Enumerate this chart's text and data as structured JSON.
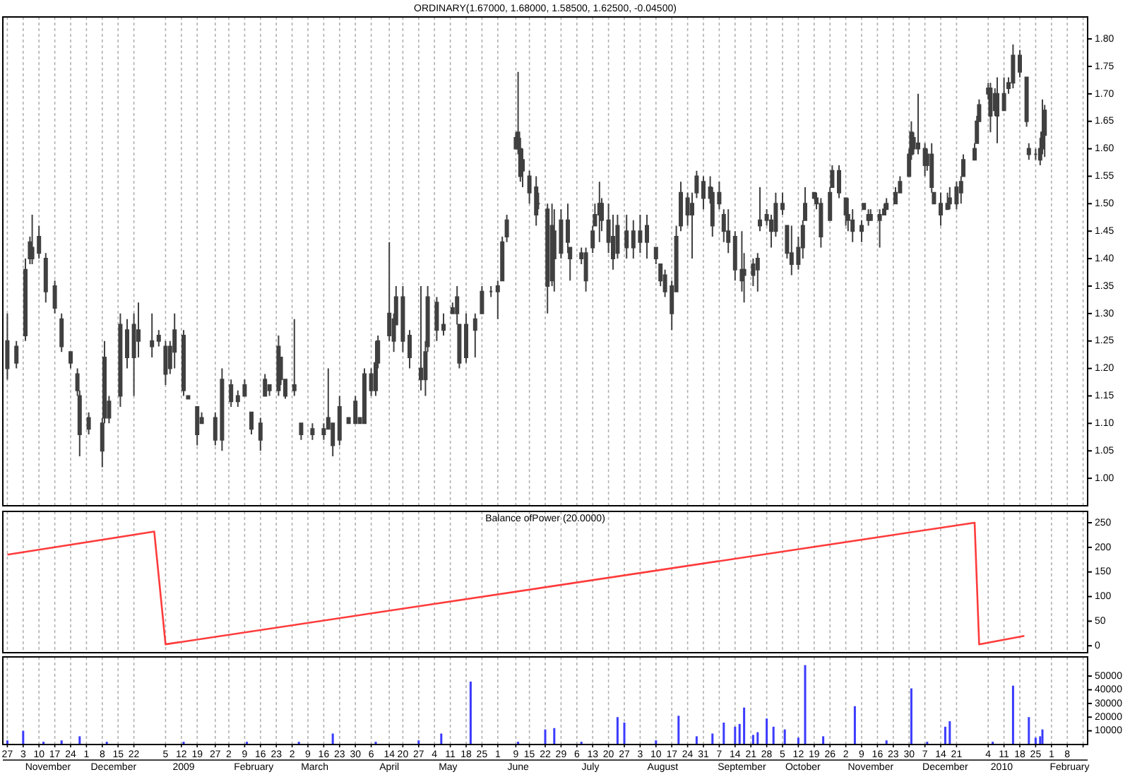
{
  "chart_data": [
    {
      "type": "candlestick",
      "title": "ORDINARY(1.67000, 1.68000, 1.58500, 1.62500, -0.04500)",
      "color": "#404040",
      "grid": "x",
      "tick_labels": "y",
      "xlim": [
        "2008-10-25",
        "2010-02-17"
      ],
      "ylim": [
        0.95,
        1.84
      ],
      "yticks": [
        {
          "value": 1,
          "label": "1.00"
        },
        1.05,
        {
          "value": 1.1,
          "label": "1.10"
        },
        1.15,
        {
          "value": 1.2,
          "label": "1.20"
        },
        1.25,
        {
          "value": 1.3,
          "label": "1.30"
        },
        1.35,
        {
          "value": 1.4,
          "label": "1.40"
        },
        1.45,
        {
          "value": 1.5,
          "label": "1.50"
        },
        1.55,
        {
          "value": 1.6,
          "label": "1.60"
        },
        1.65,
        {
          "value": 1.7,
          "label": "1.70"
        },
        1.75,
        {
          "value": 1.8,
          "label": "1.80"
        }
      ],
      "xticks": [
        "2008-10-27",
        "2008-11-03",
        "2008-11-10",
        "2008-11-17",
        "2008-11-24",
        "2008-12-01",
        "2008-12-08",
        "2008-12-15",
        "2008-12-22",
        "2009-01-05",
        "2009-01-12",
        "2009-01-19",
        "2009-01-27",
        "2009-02-02",
        "2009-02-09",
        "2009-02-16",
        "2009-02-23",
        "2009-03-02",
        "2009-03-09",
        "2009-03-16",
        "2009-03-23",
        "2009-03-30",
        "2009-04-06",
        "2009-04-14",
        "2009-04-20",
        "2009-04-27",
        "2009-05-04",
        "2009-05-11",
        "2009-05-18",
        "2009-05-25",
        "2009-06-01",
        "2009-06-09",
        "2009-06-15",
        "2009-06-22",
        "2009-06-29",
        "2009-07-06",
        "2009-07-13",
        "2009-07-20",
        "2009-07-27",
        "2009-08-03",
        "2009-08-10",
        "2009-08-17",
        "2009-08-24",
        "2009-08-31",
        "2009-09-07",
        "2009-09-14",
        "2009-09-21",
        "2009-09-28",
        "2009-10-05",
        "2009-10-12",
        "2009-10-19",
        "2009-10-26",
        "2009-11-02",
        "2009-11-09",
        "2009-11-16",
        "2009-11-23",
        "2009-11-30",
        "2009-12-07",
        "2009-12-14",
        "2009-12-21",
        "2010-01-04",
        "2010-01-11",
        "2010-01-18",
        "2010-01-25",
        "2010-02-01",
        "2010-02-08",
        "2010-02-15"
      ],
      "x": [
        "2008-10-27",
        "2008-10-31",
        "2008-11-04",
        "2008-11-06",
        "2008-11-07",
        "2008-11-10",
        "2008-11-13",
        "2008-11-17",
        "2008-11-20",
        "2008-11-24",
        "2008-11-27",
        "2008-11-28",
        "2008-12-02",
        "2008-12-08",
        "2008-12-09",
        "2008-12-11",
        "2008-12-16",
        "2008-12-19",
        "2008-12-22",
        "2008-12-24",
        "2008-12-30",
        "2009-01-02",
        "2009-01-05",
        "2009-01-07",
        "2009-01-09",
        "2009-01-13",
        "2009-01-15",
        "2009-01-19",
        "2009-01-21",
        "2009-01-27",
        "2009-01-30",
        "2009-02-03",
        "2009-02-06",
        "2009-02-09",
        "2009-02-12",
        "2009-02-16",
        "2009-02-18",
        "2009-02-20",
        "2009-02-24",
        "2009-02-25",
        "2009-02-27",
        "2009-03-03",
        "2009-03-06",
        "2009-03-11",
        "2009-03-16",
        "2009-03-18",
        "2009-03-20",
        "2009-03-23",
        "2009-03-27",
        "2009-03-30",
        "2009-04-01",
        "2009-04-03",
        "2009-04-06",
        "2009-04-08",
        "2009-04-09",
        "2009-04-14",
        "2009-04-16",
        "2009-04-17",
        "2009-04-20",
        "2009-04-23",
        "2009-04-28",
        "2009-04-30",
        "2009-05-01",
        "2009-05-05",
        "2009-05-08",
        "2009-05-12",
        "2009-05-14",
        "2009-05-15",
        "2009-05-18",
        "2009-05-22",
        "2009-05-25",
        "2009-05-29",
        "2009-06-01",
        "2009-06-03",
        "2009-06-05",
        "2009-06-09",
        "2009-06-10",
        "2009-06-11",
        "2009-06-12",
        "2009-06-15",
        "2009-06-18",
        "2009-06-19",
        "2009-06-23",
        "2009-06-25",
        "2009-06-26",
        "2009-06-29",
        "2009-07-02",
        "2009-07-03",
        "2009-07-08",
        "2009-07-10",
        "2009-07-13",
        "2009-07-14",
        "2009-07-16",
        "2009-07-17",
        "2009-07-20",
        "2009-07-22",
        "2009-07-24",
        "2009-07-28",
        "2009-07-31",
        "2009-08-03",
        "2009-08-06",
        "2009-08-10",
        "2009-08-12",
        "2009-08-14",
        "2009-08-17",
        "2009-08-19",
        "2009-08-21",
        "2009-08-24",
        "2009-08-26",
        "2009-08-28",
        "2009-08-31",
        "2009-09-03",
        "2009-09-04",
        "2009-09-07",
        "2009-09-09",
        "2009-09-11",
        "2009-09-14",
        "2009-09-17",
        "2009-09-18",
        "2009-09-22",
        "2009-09-24",
        "2009-09-25",
        "2009-09-28",
        "2009-09-30",
        "2009-10-02",
        "2009-10-05",
        "2009-10-07",
        "2009-10-09",
        "2009-10-12",
        "2009-10-14",
        "2009-10-15",
        "2009-10-19",
        "2009-10-20",
        "2009-10-22",
        "2009-10-26",
        "2009-10-27",
        "2009-10-30",
        "2009-11-02",
        "2009-11-03",
        "2009-11-05",
        "2009-11-09",
        "2009-11-10",
        "2009-11-12",
        "2009-11-13",
        "2009-11-17",
        "2009-11-19",
        "2009-11-20",
        "2009-11-24",
        "2009-11-26",
        "2009-11-30",
        "2009-12-01",
        "2009-12-02",
        "2009-12-04",
        "2009-12-07",
        "2009-12-08",
        "2009-12-10",
        "2009-12-11",
        "2009-12-14",
        "2009-12-17",
        "2009-12-18",
        "2009-12-21",
        "2009-12-23",
        "2009-12-24",
        "2009-12-29",
        "2009-12-30",
        "2009-12-31",
        "2010-01-04",
        "2010-01-05",
        "2010-01-07",
        "2010-01-08",
        "2010-01-11",
        "2010-01-13",
        "2010-01-15",
        "2010-01-18",
        "2010-01-21",
        "2010-01-22",
        "2010-01-25",
        "2010-01-27",
        "2010-01-28",
        "2010-01-29"
      ],
      "ohlc": [
        [
          1.2,
          1.3,
          1.18,
          1.25
        ],
        [
          1.21,
          1.25,
          1.2,
          1.24
        ],
        [
          1.26,
          1.4,
          1.25,
          1.38
        ],
        [
          1.4,
          1.44,
          1.39,
          1.43
        ],
        [
          1.42,
          1.48,
          1.39,
          1.4
        ],
        [
          1.41,
          1.46,
          1.4,
          1.44
        ],
        [
          1.4,
          1.41,
          1.32,
          1.34
        ],
        [
          1.35,
          1.36,
          1.3,
          1.31
        ],
        [
          1.29,
          1.3,
          1.23,
          1.24
        ],
        [
          1.23,
          1.23,
          1.2,
          1.21
        ],
        [
          1.19,
          1.2,
          1.15,
          1.16
        ],
        [
          1.15,
          1.16,
          1.04,
          1.08
        ],
        [
          1.09,
          1.12,
          1.08,
          1.11
        ],
        [
          1.1,
          1.11,
          1.02,
          1.05
        ],
        [
          1.11,
          1.25,
          1.1,
          1.22
        ],
        [
          1.14,
          1.15,
          1.1,
          1.11
        ],
        [
          1.15,
          1.3,
          1.13,
          1.28
        ],
        [
          1.27,
          1.29,
          1.2,
          1.22
        ],
        [
          1.22,
          1.3,
          1.15,
          1.28
        ],
        [
          1.27,
          1.32,
          1.22,
          1.25
        ],
        [
          1.25,
          1.3,
          1.22,
          1.24
        ],
        [
          1.26,
          1.27,
          1.24,
          1.25
        ],
        [
          1.24,
          1.25,
          1.17,
          1.19
        ],
        [
          1.2,
          1.25,
          1.19,
          1.24
        ],
        [
          1.23,
          1.3,
          1.2,
          1.27
        ],
        [
          1.26,
          1.27,
          1.15,
          1.16
        ],
        [
          1.15,
          1.15,
          1.145,
          1.145
        ],
        [
          1.13,
          1.13,
          1.06,
          1.08
        ],
        [
          1.1,
          1.12,
          1.1,
          1.11
        ],
        [
          1.11,
          1.12,
          1.06,
          1.07
        ],
        [
          1.07,
          1.2,
          1.05,
          1.18
        ],
        [
          1.17,
          1.18,
          1.13,
          1.14
        ],
        [
          1.14,
          1.16,
          1.13,
          1.15
        ],
        [
          1.15,
          1.18,
          1.15,
          1.17
        ],
        [
          1.12,
          1.12,
          1.08,
          1.09
        ],
        [
          1.1,
          1.11,
          1.05,
          1.07
        ],
        [
          1.15,
          1.19,
          1.15,
          1.18
        ],
        [
          1.17,
          1.17,
          1.15,
          1.16
        ],
        [
          1.16,
          1.26,
          1.15,
          1.24
        ],
        [
          1.22,
          1.22,
          1.17,
          1.18
        ],
        [
          1.18,
          1.18,
          1.145,
          1.15
        ],
        [
          1.16,
          1.29,
          1.15,
          1.17
        ],
        [
          1.1,
          1.1,
          1.07,
          1.08
        ],
        [
          1.08,
          1.1,
          1.07,
          1.09
        ],
        [
          1.09,
          1.1,
          1.07,
          1.08
        ],
        [
          1.09,
          1.2,
          1.09,
          1.11
        ],
        [
          1.1,
          1.1,
          1.04,
          1.06
        ],
        [
          1.07,
          1.15,
          1.06,
          1.13
        ],
        [
          1.11,
          1.11,
          1.1,
          1.1
        ],
        [
          1.1,
          1.15,
          1.1,
          1.14
        ],
        [
          1.11,
          1.11,
          1.1,
          1.1
        ],
        [
          1.1,
          1.2,
          1.1,
          1.19
        ],
        [
          1.19,
          1.2,
          1.15,
          1.16
        ],
        [
          1.16,
          1.25,
          1.15,
          1.21
        ],
        [
          1.21,
          1.26,
          1.2,
          1.25
        ],
        [
          1.26,
          1.43,
          1.25,
          1.3
        ],
        [
          1.29,
          1.3,
          1.23,
          1.25
        ],
        [
          1.28,
          1.35,
          1.28,
          1.33
        ],
        [
          1.33,
          1.35,
          1.23,
          1.25
        ],
        [
          1.26,
          1.27,
          1.2,
          1.22
        ],
        [
          1.2,
          1.35,
          1.16,
          1.18
        ],
        [
          1.18,
          1.25,
          1.15,
          1.23
        ],
        [
          1.24,
          1.35,
          1.23,
          1.33
        ],
        [
          1.32,
          1.33,
          1.25,
          1.27
        ],
        [
          1.27,
          1.3,
          1.26,
          1.28
        ],
        [
          1.3,
          1.32,
          1.3,
          1.31
        ],
        [
          1.3,
          1.35,
          1.28,
          1.33
        ],
        [
          1.28,
          1.28,
          1.2,
          1.21
        ],
        [
          1.22,
          1.3,
          1.21,
          1.28
        ],
        [
          1.27,
          1.3,
          1.22,
          1.29
        ],
        [
          1.3,
          1.35,
          1.3,
          1.34
        ],
        [
          1.34,
          1.35,
          1.33,
          1.34
        ],
        [
          1.34,
          1.36,
          1.29,
          1.35
        ],
        [
          1.36,
          1.44,
          1.36,
          1.43
        ],
        [
          1.44,
          1.48,
          1.43,
          1.47
        ],
        [
          1.6,
          1.63,
          1.6,
          1.62
        ],
        [
          1.63,
          1.74,
          1.59,
          1.6
        ],
        [
          1.6,
          1.62,
          1.54,
          1.55
        ],
        [
          1.56,
          1.6,
          1.53,
          1.58
        ],
        [
          1.55,
          1.56,
          1.5,
          1.52
        ],
        [
          1.53,
          1.55,
          1.46,
          1.48
        ],
        [
          1.5,
          1.52,
          1.49,
          1.5
        ],
        [
          1.49,
          1.5,
          1.3,
          1.35
        ],
        [
          1.36,
          1.5,
          1.35,
          1.46
        ],
        [
          1.45,
          1.49,
          1.34,
          1.4
        ],
        [
          1.41,
          1.49,
          1.4,
          1.47
        ],
        [
          1.47,
          1.5,
          1.41,
          1.43
        ],
        [
          1.42,
          1.42,
          1.36,
          1.4
        ],
        [
          1.4,
          1.42,
          1.39,
          1.41
        ],
        [
          1.41,
          1.42,
          1.34,
          1.36
        ],
        [
          1.42,
          1.46,
          1.41,
          1.45
        ],
        [
          1.46,
          1.5,
          1.46,
          1.48
        ],
        [
          1.48,
          1.54,
          1.43,
          1.5
        ],
        [
          1.5,
          1.51,
          1.45,
          1.47
        ],
        [
          1.47,
          1.5,
          1.41,
          1.43
        ],
        [
          1.44,
          1.48,
          1.38,
          1.4
        ],
        [
          1.41,
          1.48,
          1.4,
          1.46
        ],
        [
          1.45,
          1.48,
          1.4,
          1.42
        ],
        [
          1.42,
          1.47,
          1.4,
          1.45
        ],
        [
          1.45,
          1.48,
          1.41,
          1.43
        ],
        [
          1.43,
          1.48,
          1.4,
          1.46
        ],
        [
          1.42,
          1.42,
          1.39,
          1.4
        ],
        [
          1.39,
          1.39,
          1.35,
          1.36
        ],
        [
          1.37,
          1.38,
          1.33,
          1.34
        ],
        [
          1.35,
          1.36,
          1.27,
          1.3
        ],
        [
          1.34,
          1.46,
          1.34,
          1.44
        ],
        [
          1.46,
          1.54,
          1.45,
          1.52
        ],
        [
          1.51,
          1.52,
          1.46,
          1.48
        ],
        [
          1.48,
          1.52,
          1.4,
          1.5
        ],
        [
          1.52,
          1.56,
          1.51,
          1.55
        ],
        [
          1.54,
          1.55,
          1.49,
          1.51
        ],
        [
          1.51,
          1.55,
          1.5,
          1.53
        ],
        [
          1.52,
          1.53,
          1.44,
          1.46
        ],
        [
          1.5,
          1.54,
          1.49,
          1.52
        ],
        [
          1.48,
          1.49,
          1.43,
          1.45
        ],
        [
          1.45,
          1.49,
          1.41,
          1.43
        ],
        [
          1.44,
          1.45,
          1.36,
          1.38
        ],
        [
          1.38,
          1.45,
          1.34,
          1.36
        ],
        [
          1.37,
          1.41,
          1.32,
          1.38
        ],
        [
          1.37,
          1.4,
          1.35,
          1.39
        ],
        [
          1.38,
          1.41,
          1.34,
          1.4
        ],
        [
          1.46,
          1.53,
          1.45,
          1.47
        ],
        [
          1.47,
          1.49,
          1.46,
          1.48
        ],
        [
          1.47,
          1.48,
          1.42,
          1.45
        ],
        [
          1.45,
          1.52,
          1.44,
          1.5
        ],
        [
          1.5,
          1.52,
          1.48,
          1.49
        ],
        [
          1.46,
          1.46,
          1.4,
          1.41
        ],
        [
          1.41,
          1.46,
          1.37,
          1.39
        ],
        [
          1.39,
          1.44,
          1.38,
          1.42
        ],
        [
          1.42,
          1.47,
          1.4,
          1.46
        ],
        [
          1.47,
          1.53,
          1.47,
          1.5
        ],
        [
          1.51,
          1.52,
          1.51,
          1.52
        ],
        [
          1.51,
          1.52,
          1.49,
          1.5
        ],
        [
          1.5,
          1.51,
          1.42,
          1.44
        ],
        [
          1.47,
          1.53,
          1.47,
          1.52
        ],
        [
          1.53,
          1.57,
          1.53,
          1.56
        ],
        [
          1.56,
          1.57,
          1.51,
          1.52
        ],
        [
          1.51,
          1.51,
          1.46,
          1.48
        ],
        [
          1.48,
          1.51,
          1.45,
          1.47
        ],
        [
          1.47,
          1.49,
          1.43,
          1.45
        ],
        [
          1.45,
          1.47,
          1.43,
          1.46
        ],
        [
          1.49,
          1.5,
          1.49,
          1.5
        ],
        [
          1.48,
          1.49,
          1.46,
          1.47
        ],
        [
          1.47,
          1.49,
          1.47,
          1.48
        ],
        [
          1.48,
          1.49,
          1.42,
          1.47
        ],
        [
          1.48,
          1.5,
          1.48,
          1.49
        ],
        [
          1.49,
          1.51,
          1.49,
          1.5
        ],
        [
          1.5,
          1.53,
          1.5,
          1.52
        ],
        [
          1.52,
          1.55,
          1.52,
          1.54
        ],
        [
          1.55,
          1.6,
          1.55,
          1.59
        ],
        [
          1.59,
          1.65,
          1.58,
          1.63
        ],
        [
          1.62,
          1.63,
          1.59,
          1.6
        ],
        [
          1.6,
          1.7,
          1.59,
          1.61
        ],
        [
          1.6,
          1.61,
          1.55,
          1.57
        ],
        [
          1.57,
          1.6,
          1.56,
          1.59
        ],
        [
          1.59,
          1.61,
          1.52,
          1.53
        ],
        [
          1.52,
          1.52,
          1.5,
          1.5
        ],
        [
          1.5,
          1.52,
          1.46,
          1.48
        ],
        [
          1.49,
          1.52,
          1.49,
          1.5
        ],
        [
          1.5,
          1.53,
          1.49,
          1.51
        ],
        [
          1.5,
          1.54,
          1.49,
          1.53
        ],
        [
          1.52,
          1.55,
          1.5,
          1.54
        ],
        [
          1.55,
          1.59,
          1.55,
          1.58
        ],
        [
          1.58,
          1.61,
          1.58,
          1.6
        ],
        [
          1.61,
          1.66,
          1.61,
          1.65
        ],
        [
          1.65,
          1.69,
          1.65,
          1.68
        ],
        [
          1.7,
          1.72,
          1.69,
          1.71
        ],
        [
          1.71,
          1.72,
          1.63,
          1.66
        ],
        [
          1.67,
          1.71,
          1.66,
          1.7
        ],
        [
          1.7,
          1.73,
          1.61,
          1.66
        ],
        [
          1.67,
          1.73,
          1.67,
          1.7
        ],
        [
          1.71,
          1.73,
          1.7,
          1.72
        ],
        [
          1.72,
          1.79,
          1.71,
          1.77
        ],
        [
          1.77,
          1.78,
          1.73,
          1.74
        ],
        [
          1.73,
          1.73,
          1.64,
          1.65
        ],
        [
          1.6,
          1.61,
          1.58,
          1.59
        ],
        [
          1.59,
          1.6,
          1.58,
          1.59
        ],
        [
          1.58,
          1.62,
          1.57,
          1.6
        ],
        [
          1.6,
          1.69,
          1.59,
          1.63
        ],
        [
          1.67,
          1.68,
          1.585,
          1.625
        ]
      ]
    },
    {
      "type": "line",
      "title": "Balance ofPower (20.0000)",
      "color": "#ff3b3b",
      "grid": "x",
      "tick_labels": "y",
      "xlim": [
        "2008-10-25",
        "2010-02-17"
      ],
      "ylim": [
        -14,
        273
      ],
      "yticks": [
        0,
        50,
        100,
        150,
        200,
        250
      ],
      "xticks": [
        "2008-10-27",
        "2008-11-03",
        "2008-11-10",
        "2008-11-17",
        "2008-11-24",
        "2008-12-01",
        "2008-12-08",
        "2008-12-15",
        "2008-12-22",
        "2009-01-05",
        "2009-01-12",
        "2009-01-19",
        "2009-01-27",
        "2009-02-02",
        "2009-02-09",
        "2009-02-16",
        "2009-02-23",
        "2009-03-02",
        "2009-03-09",
        "2009-03-16",
        "2009-03-23",
        "2009-03-30",
        "2009-04-06",
        "2009-04-14",
        "2009-04-20",
        "2009-04-27",
        "2009-05-04",
        "2009-05-11",
        "2009-05-18",
        "2009-05-25",
        "2009-06-01",
        "2009-06-09",
        "2009-06-15",
        "2009-06-22",
        "2009-06-29",
        "2009-07-06",
        "2009-07-13",
        "2009-07-20",
        "2009-07-27",
        "2009-08-03",
        "2009-08-10",
        "2009-08-17",
        "2009-08-24",
        "2009-08-31",
        "2009-09-07",
        "2009-09-14",
        "2009-09-21",
        "2009-09-28",
        "2009-10-05",
        "2009-10-12",
        "2009-10-19",
        "2009-10-26",
        "2009-11-02",
        "2009-11-09",
        "2009-11-16",
        "2009-11-23",
        "2009-11-30",
        "2009-12-07",
        "2009-12-14",
        "2009-12-21",
        "2010-01-04",
        "2010-01-11",
        "2010-01-18",
        "2010-01-25",
        "2010-02-01",
        "2010-02-08",
        "2010-02-15"
      ],
      "x": [
        "2008-10-27",
        "2008-12-31",
        "2009-01-05",
        "2009-12-29",
        "2009-12-31",
        "2010-01-20"
      ],
      "values": [
        185,
        232,
        3,
        250,
        3,
        20
      ]
    },
    {
      "type": "bar",
      "color": "#3b3bff",
      "grid": "x",
      "xlim": [
        "2008-10-25",
        "2010-02-17"
      ],
      "ylim": [
        0,
        64000
      ],
      "yticks": [
        10000,
        20000,
        30000,
        40000,
        50000
      ],
      "xticks": [
        {
          "value": "2008-10-27",
          "label": "27"
        },
        {
          "value": "2008-11-03",
          "label": "3"
        },
        {
          "value": "2008-11-10",
          "label": "10"
        },
        {
          "value": "2008-11-17",
          "label": "17"
        },
        {
          "value": "2008-11-24",
          "label": "24"
        },
        {
          "value": "2008-12-01",
          "label": "1"
        },
        {
          "value": "2008-12-08",
          "label": "8"
        },
        {
          "value": "2008-12-15",
          "label": "15"
        },
        {
          "value": "2008-12-22",
          "label": "22"
        },
        {
          "value": "2009-01-05",
          "label": "5"
        },
        {
          "value": "2009-01-12",
          "label": "12"
        },
        {
          "value": "2009-01-19",
          "label": "19"
        },
        {
          "value": "2009-01-27",
          "label": "27"
        },
        {
          "value": "2009-02-02",
          "label": "2"
        },
        {
          "value": "2009-02-09",
          "label": "9"
        },
        {
          "value": "2009-02-16",
          "label": "16"
        },
        {
          "value": "2009-02-23",
          "label": "23"
        },
        {
          "value": "2009-03-02",
          "label": "2"
        },
        {
          "value": "2009-03-09",
          "label": "9"
        },
        {
          "value": "2009-03-16",
          "label": "16"
        },
        {
          "value": "2009-03-23",
          "label": "23"
        },
        {
          "value": "2009-03-30",
          "label": "30"
        },
        {
          "value": "2009-04-06",
          "label": "6"
        },
        {
          "value": "2009-04-14",
          "label": "14"
        },
        {
          "value": "2009-04-20",
          "label": "20"
        },
        {
          "value": "2009-04-27",
          "label": "27"
        },
        {
          "value": "2009-05-04",
          "label": "4"
        },
        {
          "value": "2009-05-11",
          "label": "11"
        },
        {
          "value": "2009-05-18",
          "label": "18"
        },
        {
          "value": "2009-05-25",
          "label": "25"
        },
        {
          "value": "2009-06-01",
          "label": "1"
        },
        {
          "value": "2009-06-09",
          "label": "9"
        },
        {
          "value": "2009-06-15",
          "label": "15"
        },
        {
          "value": "2009-06-22",
          "label": "22"
        },
        {
          "value": "2009-06-29",
          "label": "29"
        },
        {
          "value": "2009-07-06",
          "label": "6"
        },
        {
          "value": "2009-07-13",
          "label": "13"
        },
        {
          "value": "2009-07-20",
          "label": "20"
        },
        {
          "value": "2009-07-27",
          "label": "27"
        },
        {
          "value": "2009-08-03",
          "label": "3"
        },
        {
          "value": "2009-08-10",
          "label": "10"
        },
        {
          "value": "2009-08-17",
          "label": "17"
        },
        {
          "value": "2009-08-24",
          "label": "24"
        },
        {
          "value": "2009-08-31",
          "label": "31"
        },
        {
          "value": "2009-09-07",
          "label": "7"
        },
        {
          "value": "2009-09-14",
          "label": "14"
        },
        {
          "value": "2009-09-21",
          "label": "21"
        },
        {
          "value": "2009-09-28",
          "label": "28"
        },
        {
          "value": "2009-10-05",
          "label": "5"
        },
        {
          "value": "2009-10-12",
          "label": "12"
        },
        {
          "value": "2009-10-19",
          "label": "19"
        },
        {
          "value": "2009-10-26",
          "label": "26"
        },
        {
          "value": "2009-11-02",
          "label": "2"
        },
        {
          "value": "2009-11-09",
          "label": "9"
        },
        {
          "value": "2009-11-16",
          "label": "16"
        },
        {
          "value": "2009-11-23",
          "label": "23"
        },
        {
          "value": "2009-11-30",
          "label": "30"
        },
        {
          "value": "2009-12-07",
          "label": "7"
        },
        {
          "value": "2009-12-14",
          "label": "14"
        },
        {
          "value": "2009-12-21",
          "label": "21"
        },
        {
          "value": "2010-01-04",
          "label": "4"
        },
        {
          "value": "2010-01-11",
          "label": "11"
        },
        {
          "value": "2010-01-18",
          "label": "18"
        },
        {
          "value": "2010-01-25",
          "label": "25"
        },
        {
          "value": "2010-02-01",
          "label": "1"
        },
        {
          "value": "2010-02-08",
          "label": "8"
        },
        {
          "value": "2010-02-15",
          "label": null
        }
      ],
      "x2lim": [
        "2008-10-25",
        "2010-02-17"
      ],
      "x2ticks": [
        {
          "value": "2008-11-14",
          "label": "November"
        },
        {
          "value": "2008-12-13",
          "label": "December"
        },
        {
          "value": "2009-01-13",
          "label": "2009"
        },
        {
          "value": "2009-02-13",
          "label": "February"
        },
        {
          "value": "2009-03-12",
          "label": "March"
        },
        {
          "value": "2009-04-14",
          "label": "April"
        },
        {
          "value": "2009-05-10",
          "label": "May"
        },
        {
          "value": "2009-06-10",
          "label": "June"
        },
        {
          "value": "2009-07-12",
          "label": "July"
        },
        {
          "value": "2009-08-13",
          "label": "August"
        },
        {
          "value": "2009-09-17",
          "label": "September"
        },
        {
          "value": "2009-10-14",
          "label": "October"
        },
        {
          "value": "2009-11-13",
          "label": "November"
        },
        {
          "value": "2009-12-16",
          "label": "December"
        },
        {
          "value": "2010-01-10",
          "label": "2010"
        },
        {
          "value": "2010-02-09",
          "label": "February"
        }
      ],
      "x": [
        "2008-10-27",
        "2008-11-03",
        "2008-11-12",
        "2008-11-20",
        "2008-11-28",
        "2008-12-10",
        "2009-01-13",
        "2009-02-10",
        "2009-03-05",
        "2009-03-20",
        "2009-04-08",
        "2009-04-27",
        "2009-05-07",
        "2009-05-20",
        "2009-06-10",
        "2009-06-22",
        "2009-06-26",
        "2009-07-08",
        "2009-07-24",
        "2009-07-27",
        "2009-08-10",
        "2009-08-20",
        "2009-08-28",
        "2009-09-04",
        "2009-09-09",
        "2009-09-14",
        "2009-09-16",
        "2009-09-18",
        "2009-09-22",
        "2009-09-24",
        "2009-09-28",
        "2009-10-01",
        "2009-10-06",
        "2009-10-12",
        "2009-10-15",
        "2009-10-23",
        "2009-11-06",
        "2009-11-20",
        "2009-12-01",
        "2009-12-08",
        "2009-12-16",
        "2009-12-18",
        "2010-01-06",
        "2010-01-15",
        "2010-01-22",
        "2010-01-25",
        "2010-01-27",
        "2010-01-28"
      ],
      "values": [
        3000,
        10000,
        2000,
        3000,
        6000,
        2000,
        2000,
        2000,
        2000,
        8000,
        2000,
        3000,
        8000,
        46000,
        2000,
        11000,
        12000,
        2000,
        20000,
        16000,
        3000,
        21000,
        6000,
        8000,
        16000,
        13000,
        15000,
        27000,
        7000,
        9000,
        19000,
        13000,
        11000,
        5000,
        58000,
        6000,
        28000,
        3000,
        41000,
        2000,
        13000,
        17000,
        2000,
        43000,
        20000,
        5000,
        6000,
        11000
      ]
    }
  ]
}
